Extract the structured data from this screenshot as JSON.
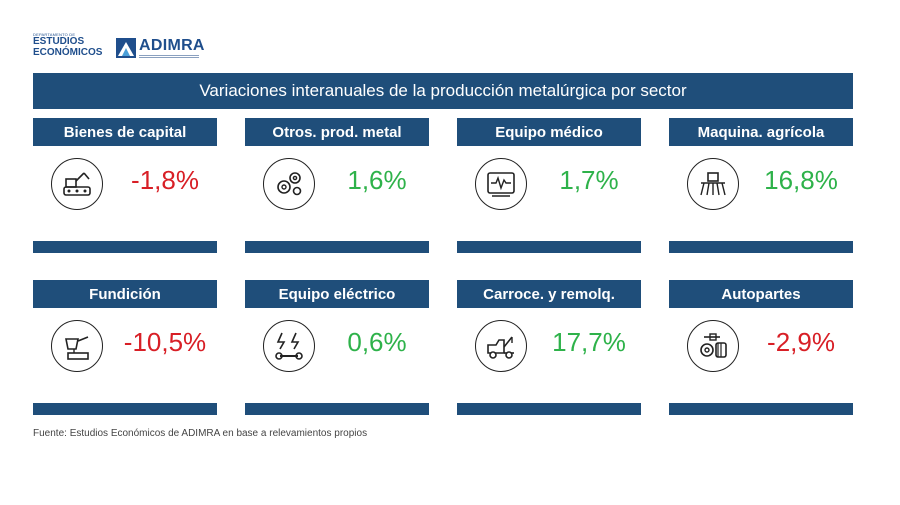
{
  "brand": {
    "dept_small": "DEPARTAMENTO DE",
    "dept_line1": "ESTUDIOS",
    "dept_line2": "ECONÓMICOS",
    "adimra": "ADIMRA"
  },
  "colors": {
    "header": "#1f4e7a",
    "negative": "#d81f26",
    "positive": "#2eb24a"
  },
  "chart_data": {
    "type": "table",
    "title": "Variaciones interanuales de la producción metalúrgica por sector",
    "unit": "%",
    "categories": [
      "Bienes de capital",
      "Otros. prod. metal",
      "Equipo médico",
      "Maquina. agrícola",
      "Fundición",
      "Equipo eléctrico",
      "Carroce. y remolq.",
      "Autopartes"
    ],
    "values": [
      -1.8,
      1.6,
      1.7,
      16.8,
      -10.5,
      0.6,
      17.7,
      -2.9
    ],
    "labels": [
      "-1,8%",
      "1,6%",
      "1,7%",
      "16,8%",
      "-10,5%",
      "0,6%",
      "17,7%",
      "-2,9%"
    ],
    "icons": [
      "robot-arm-icon",
      "gears-icon",
      "monitor-heartbeat-icon",
      "farm-machine-icon",
      "foundry-ladle-icon",
      "electric-wrench-icon",
      "tow-truck-icon",
      "engine-parts-icon"
    ]
  },
  "source": "Fuente: Estudios Económicos de ADIMRA en base a relevamientos propios"
}
